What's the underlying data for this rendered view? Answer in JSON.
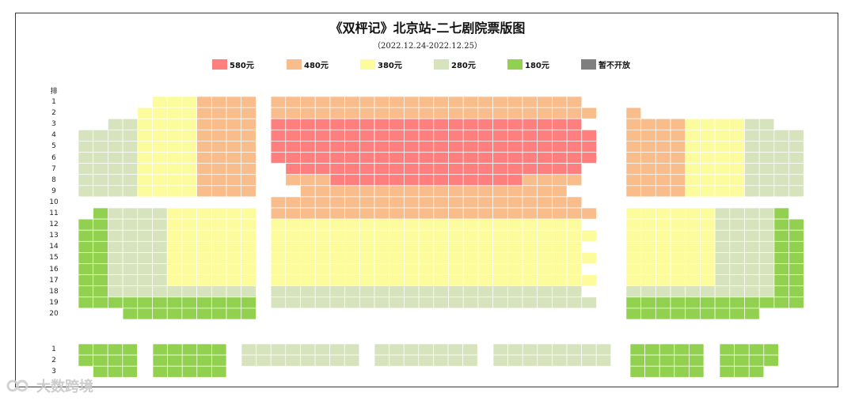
{
  "title": "《双枰记》北京站-二七剧院票版图",
  "subtitle": "（2022.12.24-2022.12.25）",
  "legend": [
    {
      "label": "580元",
      "color": "#ff7f7f"
    },
    {
      "label": "480元",
      "color": "#f9bd8c"
    },
    {
      "label": "380元",
      "color": "#fcfc9c"
    },
    {
      "label": "280元",
      "color": "#d7e3bd"
    },
    {
      "label": "180元",
      "color": "#92d050"
    },
    {
      "label": "暂不开放",
      "color": "#7f7f7f"
    }
  ],
  "row_header": "排",
  "orchestra_rows": [
    "1",
    "2",
    "3",
    "4",
    "5",
    "6",
    "7",
    "8",
    "9",
    "10",
    "11",
    "12",
    "13",
    "14",
    "15",
    "16",
    "17",
    "18",
    "19",
    "20"
  ],
  "balcony_rows": [
    "1",
    "2",
    "3"
  ],
  "watermark": "大数跨境"
}
